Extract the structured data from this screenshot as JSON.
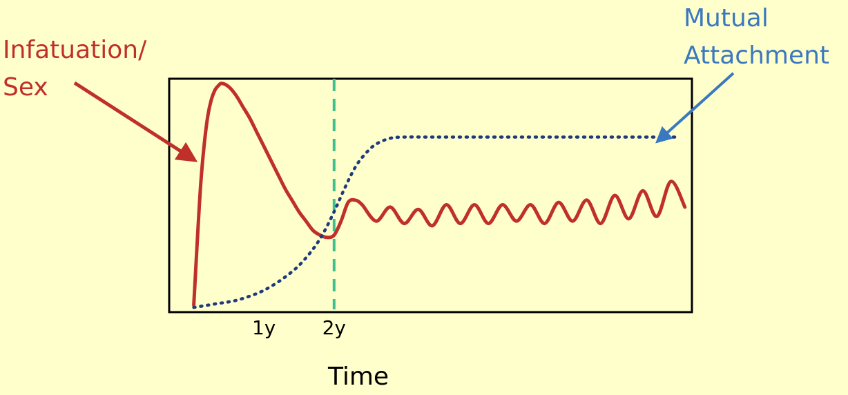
{
  "chart_data": {
    "type": "line",
    "title": "",
    "xlabel": "Time",
    "ylabel": "",
    "x_unit": "years",
    "xlim": [
      -0.35,
      7.1
    ],
    "ylim": [
      0,
      10
    ],
    "grid": false,
    "legend": "none",
    "x_ticks": [
      {
        "value": 1,
        "label": "1y"
      },
      {
        "value": 2,
        "label": "2y"
      }
    ],
    "reference_lines": [
      {
        "axis": "x",
        "value": 2,
        "style": "dashed",
        "color": "#3dbf8f"
      }
    ],
    "series": [
      {
        "name": "Infatuation/\nSex",
        "style": "solid",
        "color": "#c0302a",
        "x": [
          0,
          0.05,
          0.1,
          0.15,
          0.2,
          0.25,
          0.3,
          0.35,
          0.4,
          0.5,
          0.6,
          0.7,
          0.8,
          0.9,
          1.0,
          1.1,
          1.2,
          1.3,
          1.4,
          1.5,
          1.6,
          1.7,
          1.8,
          1.9,
          2.0,
          2.1,
          2.2,
          2.3,
          2.4,
          2.6,
          2.8,
          3.0,
          3.2,
          3.4,
          3.6,
          3.8,
          4.0,
          4.2,
          4.4,
          4.6,
          4.8,
          5.0,
          5.2,
          5.4,
          5.6,
          5.8,
          6.0,
          6.2,
          6.4,
          6.6,
          6.8,
          7.0
        ],
        "y": [
          0.3,
          3.0,
          5.5,
          7.2,
          8.4,
          9.1,
          9.5,
          9.7,
          9.8,
          9.65,
          9.3,
          8.8,
          8.3,
          7.7,
          7.1,
          6.5,
          5.9,
          5.3,
          4.8,
          4.3,
          3.9,
          3.5,
          3.3,
          3.2,
          3.3,
          3.9,
          4.7,
          4.8,
          4.6,
          3.9,
          4.5,
          3.8,
          4.4,
          3.7,
          4.6,
          3.8,
          4.6,
          3.8,
          4.6,
          3.9,
          4.6,
          3.8,
          4.7,
          3.9,
          4.8,
          3.8,
          5.0,
          4.0,
          5.2,
          4.1,
          5.6,
          4.5
        ]
      },
      {
        "name": "Mutual\nAttachment",
        "style": "dotted",
        "color": "#1f3a7a",
        "x": [
          0,
          0.3,
          0.6,
          0.9,
          1.1,
          1.3,
          1.5,
          1.7,
          1.85,
          2.0,
          2.15,
          2.3,
          2.45,
          2.6,
          2.8,
          3.0,
          3.3,
          3.6,
          4.0,
          4.5,
          5.0,
          5.5,
          6.0,
          6.5,
          6.9
        ],
        "y": [
          0.2,
          0.35,
          0.5,
          0.8,
          1.1,
          1.5,
          2.0,
          2.7,
          3.4,
          4.3,
          5.3,
          6.2,
          6.8,
          7.2,
          7.45,
          7.5,
          7.5,
          7.5,
          7.5,
          7.5,
          7.5,
          7.5,
          7.5,
          7.5,
          7.5
        ]
      }
    ]
  }
}
